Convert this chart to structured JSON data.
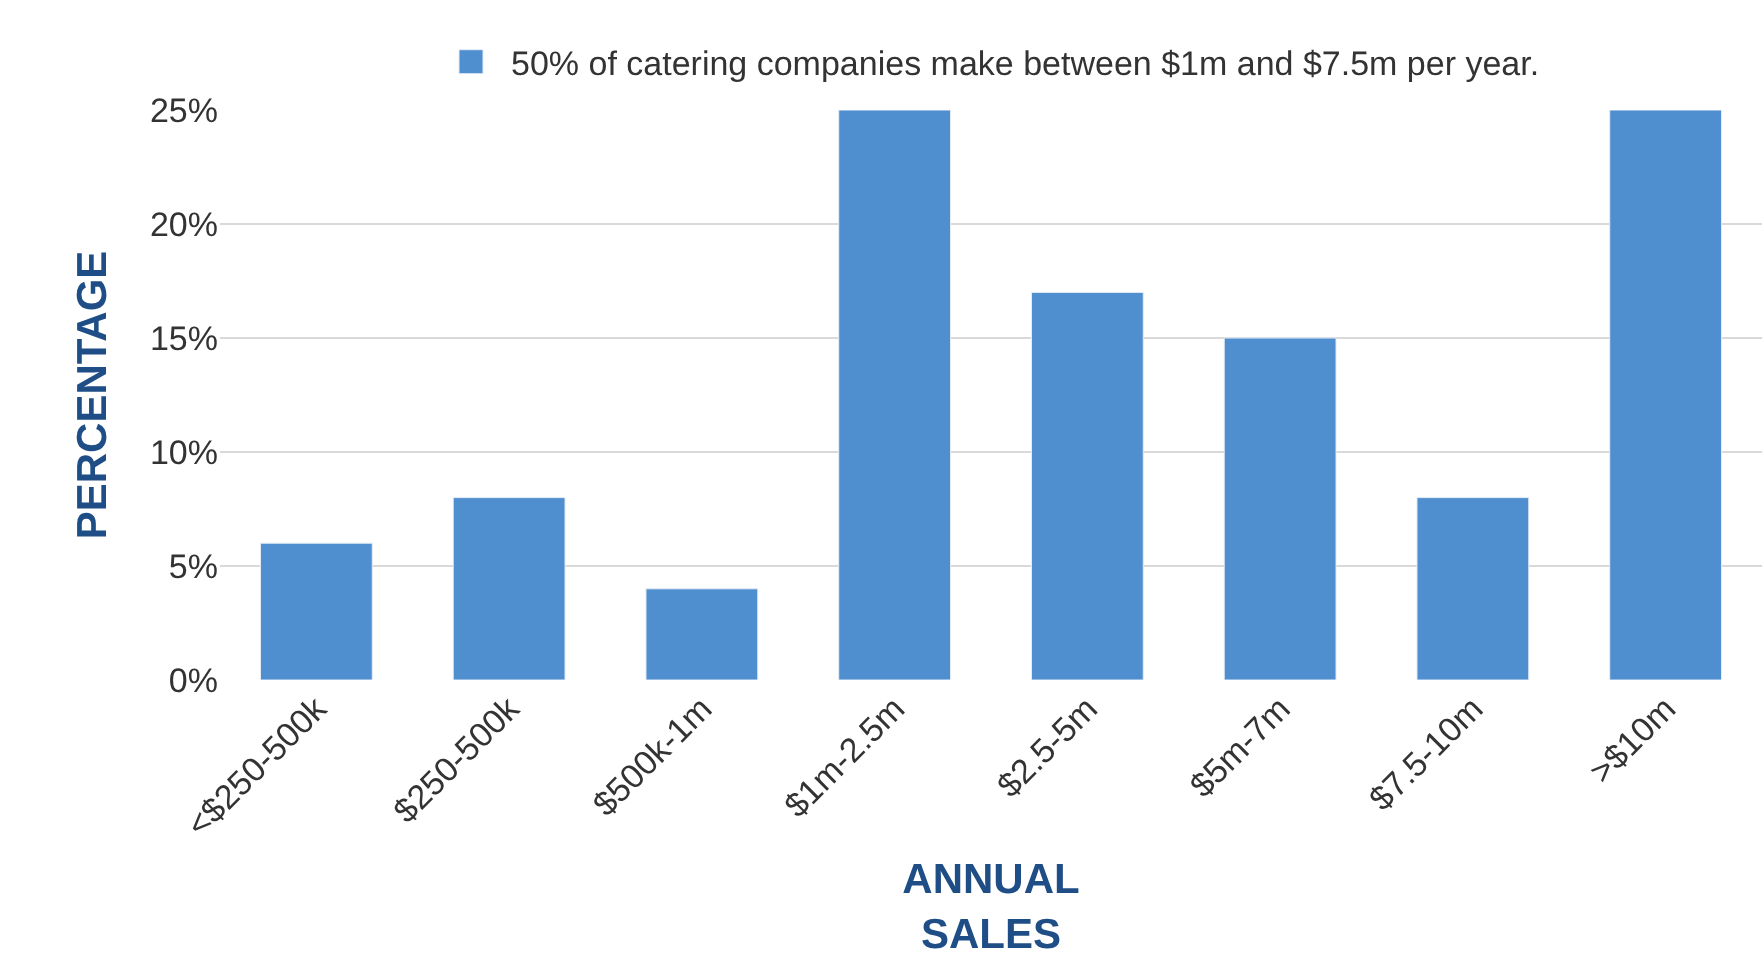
{
  "chart_data": {
    "type": "bar",
    "xlabel": "ANNUAL\nSALES",
    "ylabel": "PERCENTAGE",
    "categories": [
      "<$250-500k",
      "$250-500k",
      "$500k-1m",
      "$1m-2.5m",
      "$2.5-5m",
      "$5m-7m",
      "$7.5-10m",
      ">$10m"
    ],
    "series": [
      {
        "name": "50% of catering companies make between $1m and $7.5m per year.",
        "color": "#508fcf",
        "values": [
          6,
          8,
          4,
          25,
          17,
          15,
          8,
          25
        ]
      }
    ],
    "ylim": [
      0,
      25
    ],
    "yticks": [
      {
        "value": 0,
        "label": "0%"
      },
      {
        "value": 5,
        "label": "5%"
      },
      {
        "value": 10,
        "label": "10%"
      },
      {
        "value": 15,
        "label": "15%"
      },
      {
        "value": 20,
        "label": "20%"
      },
      {
        "value": 25,
        "label": "25%"
      }
    ],
    "grid": "y",
    "legend": "top"
  }
}
